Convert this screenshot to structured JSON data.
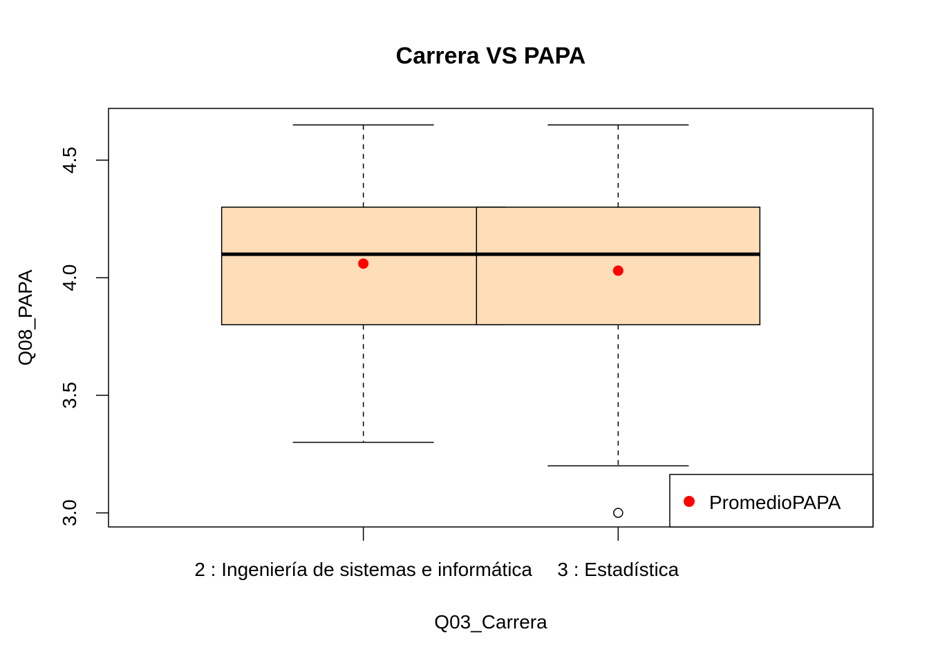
{
  "chart_data": {
    "type": "boxplot",
    "title": "Carrera VS PAPA",
    "xlabel": "Q03_Carrera",
    "ylabel": "Q08_PAPA",
    "ylim": [
      2.94,
      4.72
    ],
    "yticks": [
      3.0,
      3.5,
      4.0,
      4.5
    ],
    "ytick_labels": [
      "3.0",
      "3.5",
      "4.0",
      "4.5"
    ],
    "categories": [
      "2 : Ingeniería de sistemas e informática",
      "3 : Estadística"
    ],
    "boxes": [
      {
        "whisker_low": 3.3,
        "q1": 3.8,
        "median": 4.1,
        "q3": 4.3,
        "whisker_high": 4.65,
        "mean": 4.06,
        "outliers": []
      },
      {
        "whisker_low": 3.2,
        "q1": 3.8,
        "median": 4.1,
        "q3": 4.3,
        "whisker_high": 4.65,
        "mean": 4.03,
        "outliers": [
          3.0
        ]
      }
    ],
    "legend": {
      "label": "PromedioPAPA",
      "position": "bottom-right"
    },
    "colors": {
      "box_fill": "#FDDEB9",
      "mean_point": "#FF0000"
    },
    "grid": false
  }
}
